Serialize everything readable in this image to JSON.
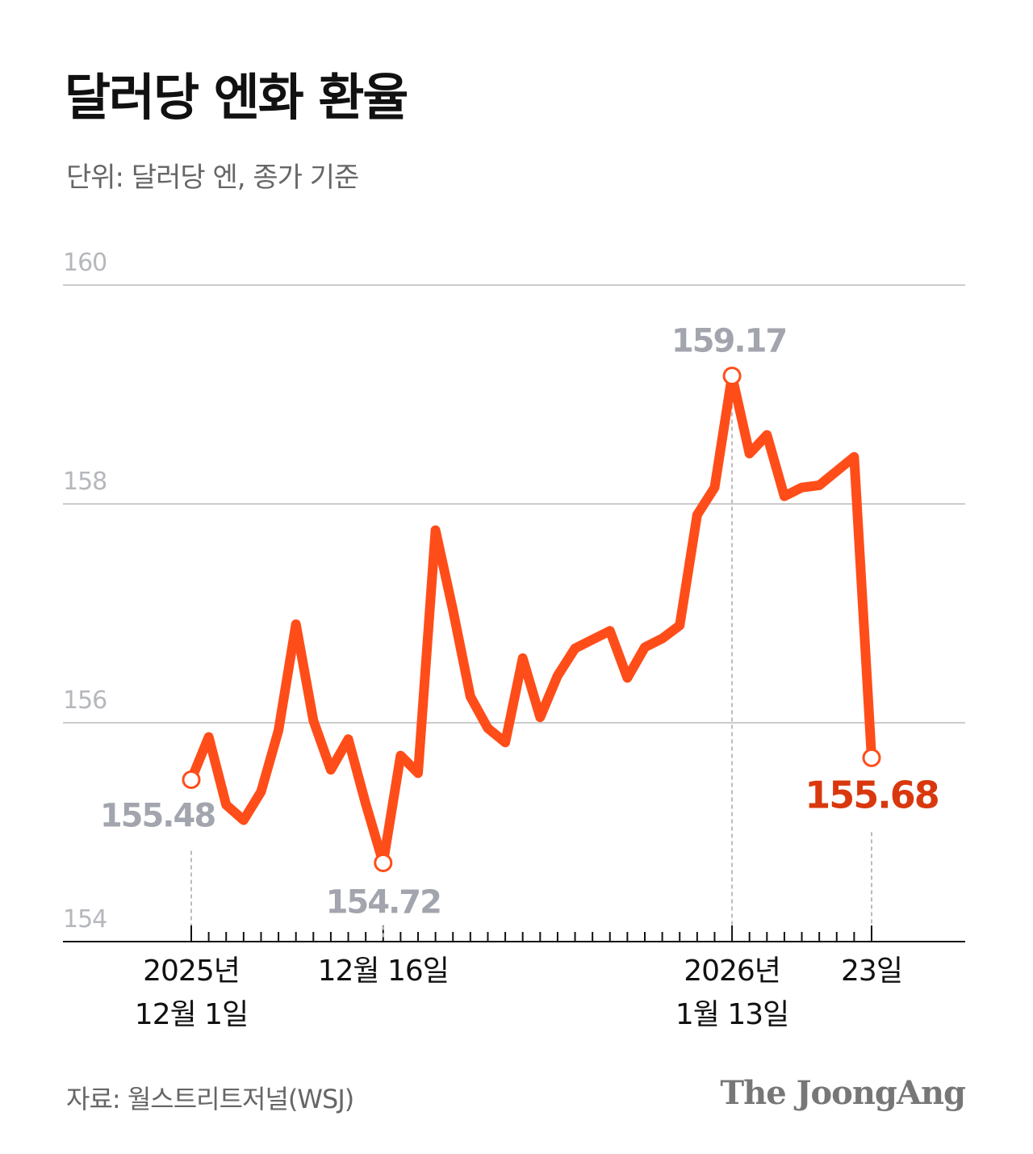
{
  "chart_data": {
    "type": "line",
    "title": "달러당 엔화 환율",
    "subtitle": "단위: 달러당 엔, 종가 기준",
    "source": "자료: 월스트리트저널(WSJ)",
    "logo": "The JoongAng",
    "categories": [
      "2025년\n12월 1일",
      null,
      null,
      null,
      null,
      null,
      null,
      null,
      null,
      null,
      null,
      "12월 16일",
      null,
      null,
      null,
      null,
      null,
      null,
      null,
      null,
      null,
      null,
      null,
      null,
      null,
      null,
      null,
      null,
      null,
      null,
      null,
      "2026년\n1월 13일",
      null,
      null,
      null,
      null,
      null,
      null,
      null,
      "23일"
    ],
    "series": [
      {
        "color": "#ff4d1a",
        "values": [
          155.48,
          155.87,
          155.25,
          155.11,
          155.37,
          155.93,
          156.9,
          156.02,
          155.57,
          155.85,
          155.26,
          154.72,
          155.7,
          155.54,
          157.76,
          157.03,
          156.24,
          155.95,
          155.82,
          156.59,
          156.05,
          156.43,
          156.68,
          156.76,
          156.84,
          156.41,
          156.69,
          156.77,
          156.89,
          157.9,
          158.15,
          159.17,
          158.46,
          158.63,
          158.07,
          158.15,
          158.17,
          158.3,
          158.43,
          155.68
        ]
      }
    ],
    "ylim": [
      154,
      160
    ],
    "yticks": [
      154,
      156,
      158,
      160
    ],
    "grid": true,
    "label_color": "#a3a5ae",
    "end_label_color": "#d9380f"
  }
}
